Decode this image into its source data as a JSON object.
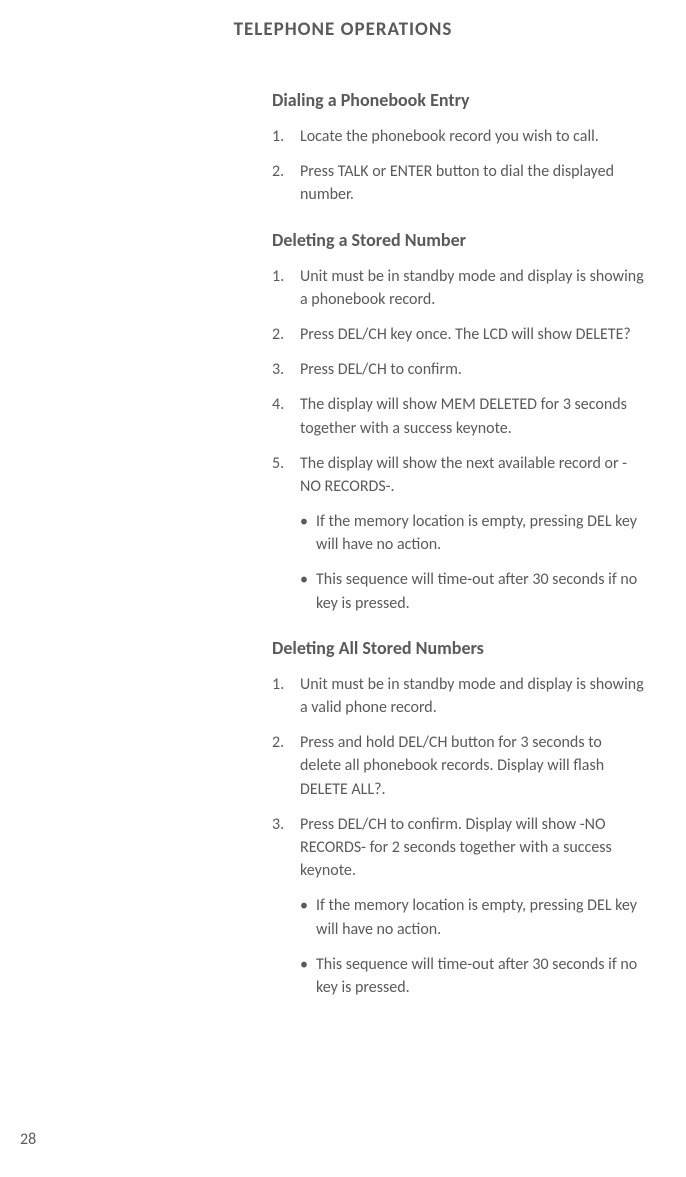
{
  "page": {
    "title": "TELEPHONE OPERATIONS",
    "number": "28"
  },
  "sections": [
    {
      "title": "Dialing a Phonebook Entry",
      "items": [
        {
          "num": "1.",
          "text": "Locate the phonebook record you wish to call."
        },
        {
          "num": "2.",
          "text": "Press TALK or ENTER button to dial the displayed number."
        }
      ],
      "bullets": []
    },
    {
      "title": "Deleting a Stored Number",
      "items": [
        {
          "num": "1.",
          "text": "Unit must be in standby mode and display is showing a phonebook record."
        },
        {
          "num": "2.",
          "text": "Press DEL/CH key once. The LCD will show DELETE?"
        },
        {
          "num": "3.",
          "text": "Press DEL/CH to confirm."
        },
        {
          "num": "4.",
          "text": "The display will show MEM DELETED for 3 seconds together with a success keynote."
        },
        {
          "num": "5.",
          "text": "The display will show the next available record or -NO RECORDS-."
        }
      ],
      "bullets": [
        {
          "text": "If the memory location is empty, pressing DEL key will have no action."
        },
        {
          "text": "This sequence will time-out after 30 seconds if no key is pressed."
        }
      ]
    },
    {
      "title": "Deleting All Stored Numbers",
      "items": [
        {
          "num": "1.",
          "text": "Unit must be in standby mode and display is showing a valid phone record."
        },
        {
          "num": "2.",
          "text": "Press and hold DEL/CH button for 3 seconds to delete all phonebook records. Display will flash DELETE ALL?."
        },
        {
          "num": "3.",
          "text": "Press DEL/CH to confirm. Display will show -NO RECORDS- for 2 seconds together with a success keynote."
        }
      ],
      "bullets": [
        {
          "text": "If the memory location is empty, pressing DEL key will have no action."
        },
        {
          "text": "This sequence will time-out after 30 seconds if no key is pressed."
        }
      ]
    }
  ]
}
